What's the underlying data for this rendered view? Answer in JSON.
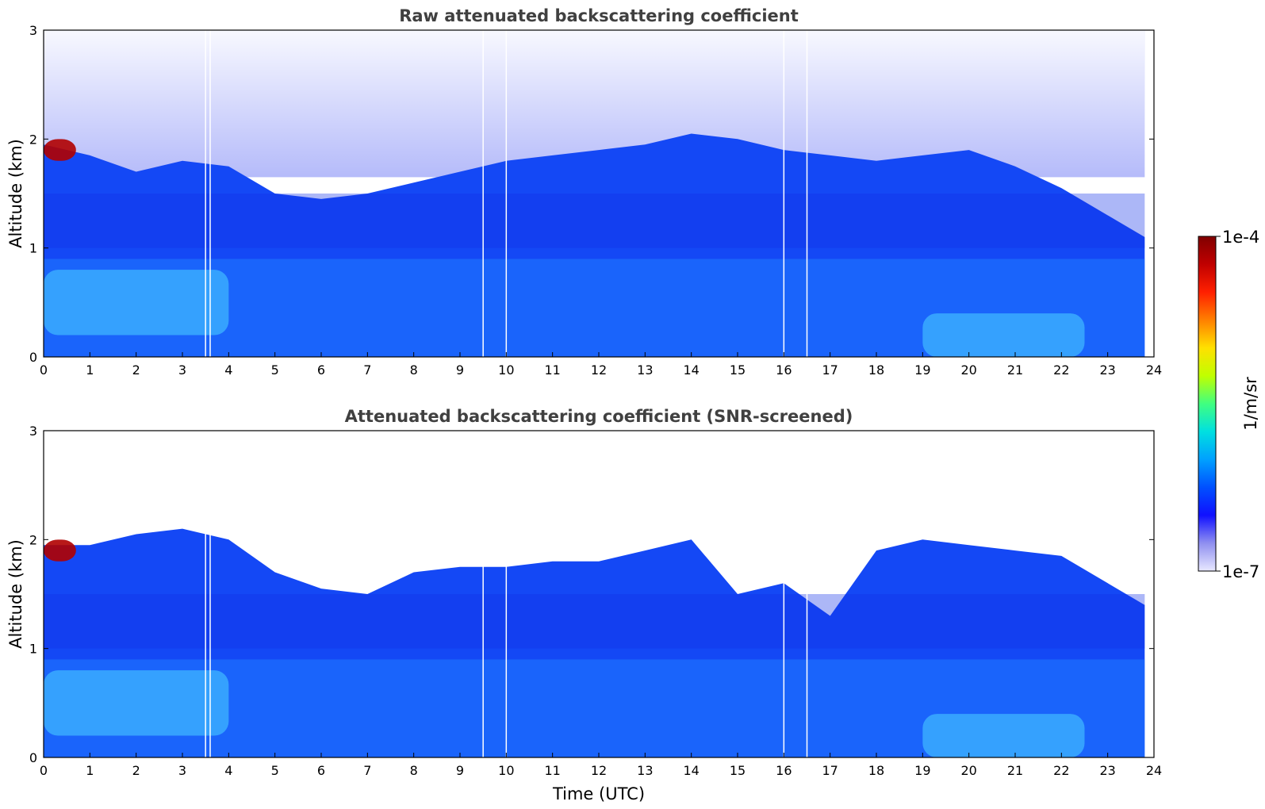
{
  "chart_data": [
    {
      "type": "heatmap",
      "title": "Raw attenuated backscattering coefficient",
      "xlabel": "",
      "ylabel": "Altitude (km)",
      "xlim": [
        0,
        24
      ],
      "ylim": [
        0,
        3
      ],
      "x_ticks": [
        "0",
        "1",
        "2",
        "3",
        "4",
        "5",
        "6",
        "7",
        "8",
        "9",
        "10",
        "11",
        "12",
        "13",
        "14",
        "15",
        "16",
        "17",
        "18",
        "19",
        "20",
        "21",
        "22",
        "23",
        "24"
      ],
      "y_ticks": [
        "0",
        "1",
        "2",
        "3"
      ],
      "data_end_time": 23.8,
      "signal_top_km": [
        1.95,
        1.85,
        1.7,
        1.8,
        1.75,
        1.5,
        1.45,
        1.5,
        1.6,
        1.7,
        1.8,
        1.85,
        1.9,
        1.95,
        2.05,
        2.0,
        1.9,
        1.85,
        1.8,
        1.85,
        1.9,
        1.75,
        1.55,
        1.3,
        1.1
      ],
      "features": [
        {
          "desc": "high backscatter cloud",
          "x": [
            0.0,
            0.7
          ],
          "y": [
            1.8,
            2.0
          ],
          "value": "1e-4"
        },
        {
          "desc": "enhanced aerosol layer",
          "x": [
            0.0,
            4.0
          ],
          "y": [
            0.2,
            0.8
          ]
        },
        {
          "desc": "enhanced aerosol layer",
          "x": [
            19.0,
            22.5
          ],
          "y": [
            0.0,
            0.4
          ]
        }
      ],
      "missing_profiles_utc": [
        3.5,
        3.6,
        9.5,
        10.0,
        16.0,
        16.5
      ]
    },
    {
      "type": "heatmap",
      "title": "Attenuated backscattering coefficient (SNR-screened)",
      "xlabel": "Time (UTC)",
      "ylabel": "Altitude (km)",
      "xlim": [
        0,
        24
      ],
      "ylim": [
        0,
        3
      ],
      "x_ticks": [
        "0",
        "1",
        "2",
        "3",
        "4",
        "5",
        "6",
        "7",
        "8",
        "9",
        "10",
        "11",
        "12",
        "13",
        "14",
        "15",
        "16",
        "17",
        "18",
        "19",
        "20",
        "21",
        "22",
        "23",
        "24"
      ],
      "y_ticks": [
        "0",
        "1",
        "2",
        "3"
      ],
      "data_end_time": 23.8,
      "signal_top_km": [
        1.95,
        1.95,
        2.05,
        2.1,
        2.0,
        1.7,
        1.55,
        1.5,
        1.7,
        1.75,
        1.75,
        1.8,
        1.8,
        1.9,
        2.0,
        1.5,
        1.6,
        1.3,
        1.9,
        2.0,
        1.95,
        1.9,
        1.85,
        1.6,
        1.4
      ],
      "features": [
        {
          "desc": "high backscatter cloud",
          "x": [
            0.0,
            0.7
          ],
          "y": [
            1.8,
            2.0
          ],
          "value": "1e-4"
        },
        {
          "desc": "enhanced aerosol layer",
          "x": [
            0.0,
            4.0
          ],
          "y": [
            0.2,
            0.8
          ]
        },
        {
          "desc": "enhanced aerosol layer",
          "x": [
            19.0,
            22.5
          ],
          "y": [
            0.0,
            0.4
          ]
        }
      ],
      "missing_profiles_utc": [
        3.5,
        3.6,
        9.5,
        10.0,
        16.0,
        16.5
      ]
    }
  ],
  "colorbar": {
    "label": "1/m/sr",
    "max_label": "1e-4",
    "min_label": "1e-7",
    "scale": "log",
    "colors": [
      "#e8e8ff",
      "#9090f0",
      "#1010ff",
      "#0050ff",
      "#00a0ff",
      "#00e0e0",
      "#40ff80",
      "#c0ff00",
      "#ffe000",
      "#ff8000",
      "#ff2000",
      "#c00000",
      "#800000"
    ]
  }
}
